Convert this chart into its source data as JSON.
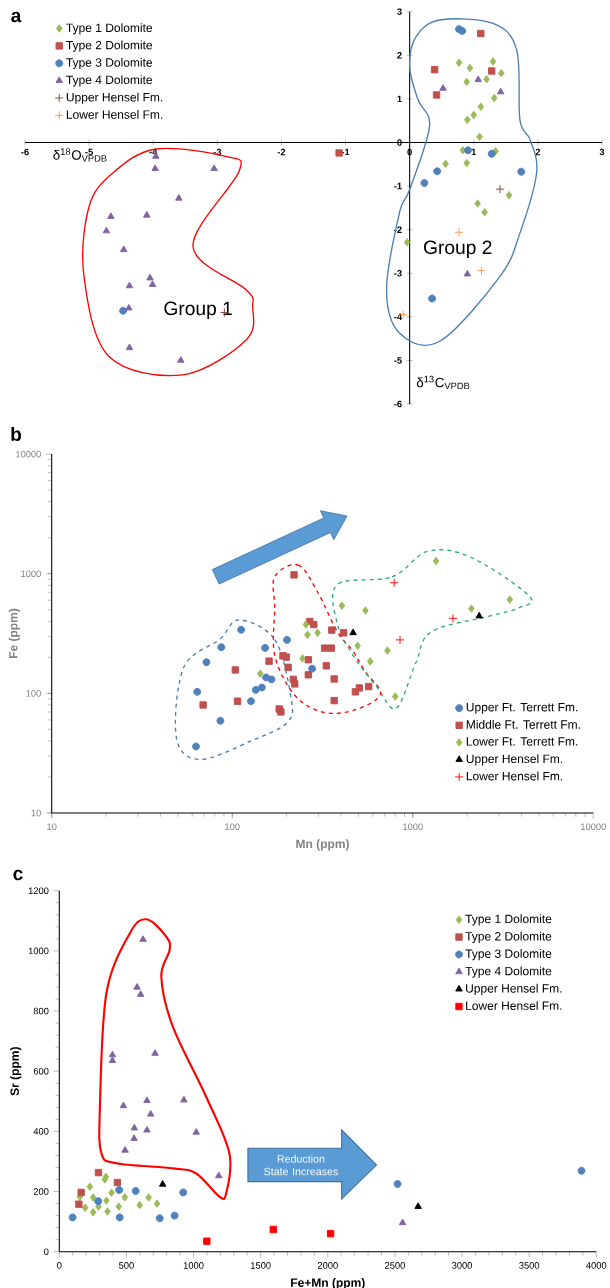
{
  "chart_data": [
    {
      "type": "scatter",
      "title": "a",
      "xlabel": "δ$^{18}$O$_{VPDB}$",
      "ylabel": "δ$^{13}$C$_{VPDB}$",
      "xlim": [
        -6,
        3
      ],
      "ylim": [
        -6,
        3
      ],
      "xticks": [
        -6,
        -5,
        -4,
        -3,
        -2,
        -1,
        0,
        1,
        2,
        3
      ],
      "yticks": [
        -6,
        -5,
        -4,
        -3,
        -2,
        -1,
        0,
        1,
        2,
        3
      ],
      "legend": "top left",
      "annotations": [
        "Group 1",
        "Group 2"
      ],
      "series": [
        {
          "name": "Type 1 Dolomite",
          "color": "#9bbb59",
          "marker": "diamond",
          "x": [
            0.77,
            0.94,
            1.3,
            1.43,
            0.89,
            1.2,
            1.32,
            1.11,
            1.0,
            0.9,
            1.09,
            0.83,
            1.34,
            0.56,
            0.89,
            1.55,
            1.06,
            1.17,
            -0.04
          ],
          "values": [
            1.83,
            1.71,
            1.86,
            1.59,
            1.39,
            1.45,
            1.02,
            0.82,
            0.63,
            0.52,
            0.13,
            -0.18,
            -0.2,
            -0.49,
            -0.47,
            -1.21,
            -1.4,
            -1.6,
            -2.29
          ]
        },
        {
          "name": "Type 2 Dolomite",
          "color": "#c0504d",
          "marker": "square",
          "x": [
            1.11,
            0.39,
            1.28,
            0.42,
            -1.1
          ],
          "values": [
            2.5,
            1.67,
            1.64,
            1.09,
            -0.24
          ]
        },
        {
          "name": "Type 3 Dolomite",
          "color": "#4f81bd",
          "marker": "circle",
          "x": [
            0.77,
            0.82,
            0.91,
            1.28,
            0.43,
            1.74,
            0.23,
            0.35,
            -4.47
          ],
          "values": [
            2.6,
            2.56,
            -0.18,
            -0.26,
            -0.66,
            -0.67,
            -0.93,
            -3.58,
            -3.86
          ]
        },
        {
          "name": "Type 4 Dolomite",
          "color": "#8064a2",
          "marker": "triangle",
          "x": [
            0.52,
            1.07,
            1.42,
            0.9,
            -3.96,
            -3.97,
            -3.05,
            -3.6,
            -4.66,
            -4.1,
            -4.73,
            -4.46,
            -4.37,
            -4.05,
            -4.01,
            -4.38,
            -4.37,
            -3.57
          ],
          "values": [
            1.24,
            1.44,
            1.16,
            -3.02,
            -0.32,
            -0.6,
            -0.6,
            -1.28,
            -1.7,
            -1.67,
            -2.03,
            -2.46,
            -3.29,
            -3.11,
            -3.26,
            -3.8,
            -4.71,
            -5.0
          ]
        },
        {
          "name": "Upper Hensel Fm.",
          "color": "#7f3f3f",
          "marker": "cross",
          "x": [
            -2.89,
            1.41
          ],
          "values": [
            -3.9,
            -1.07
          ]
        },
        {
          "name": "Lower Hensel Fm.",
          "color": "#f79646",
          "marker": "cross",
          "x": [
            0.77,
            1.12,
            -0.1
          ],
          "values": [
            -2.06,
            -2.94,
            -3.95
          ]
        }
      ]
    },
    {
      "type": "scatter",
      "title": "b",
      "xlabel": "Mn (ppm)",
      "ylabel": "Fe (ppm)",
      "log": "xy",
      "xlim": [
        10,
        10000
      ],
      "ylim": [
        10,
        10000
      ],
      "xticks": [
        10,
        100,
        1000,
        10000
      ],
      "yticks": [
        10,
        100,
        1000,
        10000
      ],
      "legend": "bottom right",
      "series": [
        {
          "name": "Upper Ft. Terrett Fm.",
          "color": "#4f81bd",
          "marker": "circle",
          "x": [
            112,
            87,
            72,
            64,
            86,
            63,
            127,
            135,
            146,
            154,
            165,
            152,
            201,
            277
          ],
          "values": [
            340,
            243,
            182,
            103,
            59,
            36,
            86,
            107,
            112,
            136,
            131,
            240,
            280,
            161
          ]
        },
        {
          "name": "Middle Ft. Terrett Fm.",
          "color": "#c0504d",
          "marker": "square",
          "x": [
            220,
            69,
            104,
            107,
            160,
            191,
            199,
            204,
            182,
            186,
            218,
            222,
            269,
            283,
            264,
            264,
            325,
            354,
            332,
            367,
            367,
            356,
            414,
            481,
            506,
            570
          ],
          "values": [
            979,
            80,
            157,
            86,
            186,
            206,
            201,
            165,
            74,
            70,
            131,
            120,
            399,
            376,
            191,
            143,
            239,
            239,
            170,
            132,
            87,
            338,
            321,
            103,
            111,
            114
          ]
        },
        {
          "name": "Lower Ft. Terrett Fm.",
          "color": "#9bbb59",
          "marker": "diamond",
          "x": [
            143,
            245,
            256,
            261,
            297,
            405,
            547,
            495,
            581,
            724,
            800,
            1346,
            2113,
            3449
          ],
          "values": [
            146,
            196,
            376,
            309,
            321,
            540,
            493,
            250,
            185,
            228,
            94,
            1277,
            511,
            608
          ]
        },
        {
          "name": "Upper Hensel Fm.",
          "color": "#000000",
          "marker": "triangle",
          "x": [
            467,
            2333
          ],
          "values": [
            321,
            443
          ]
        },
        {
          "name": "Lower Hensel Fm.",
          "color": "#ff0000",
          "marker": "cross",
          "x": [
            789,
            850,
            1671
          ],
          "values": [
            841,
            280,
            424
          ]
        }
      ]
    },
    {
      "type": "scatter",
      "title": "c",
      "xlabel": "Fe+Mn (ppm)",
      "ylabel": "Sr (ppm)",
      "xlim": [
        0,
        4000
      ],
      "ylim": [
        0,
        1200
      ],
      "xticks": [
        0,
        500,
        1000,
        1500,
        2000,
        2500,
        3000,
        3500,
        4000
      ],
      "yticks": [
        0,
        200,
        400,
        600,
        800,
        1000,
        1200
      ],
      "legend": "top right",
      "annotations": [
        "Reduction State Increases"
      ],
      "series": [
        {
          "name": "Type 1 Dolomite",
          "color": "#9bbb59",
          "marker": "diamond",
          "x": [
            228,
            347,
            339,
            193,
            252,
            252,
            351,
            359,
            389,
            443,
            488,
            599,
            666,
            728,
            292,
            153
          ],
          "values": [
            216,
            249,
            240,
            146,
            180,
            131,
            170,
            134,
            196,
            150,
            181,
            155,
            180,
            160,
            150,
            183
          ]
        },
        {
          "name": "Type 2 Dolomite",
          "color": "#c0504d",
          "marker": "square",
          "x": [
            292,
            163,
            146,
            433
          ],
          "values": [
            263,
            197,
            158,
            230
          ]
        },
        {
          "name": "Type 3 Dolomite",
          "color": "#4f81bd",
          "marker": "circle",
          "x": [
            99,
            290,
            446,
            450,
            569,
            748,
            859,
            923,
            2520,
            3890
          ],
          "values": [
            114,
            168,
            205,
            114,
            202,
            111,
            120,
            197,
            225,
            269
          ]
        },
        {
          "name": "Type 4 Dolomite",
          "color": "#8064a2",
          "marker": "triangle",
          "x": [
            624,
            579,
            606,
            396,
            396,
            713,
            478,
            653,
            928,
            681,
            559,
            653,
            557,
            490,
            1020,
            1188,
            2557
          ],
          "values": [
            1038,
            879,
            855,
            654,
            635,
            659,
            485,
            502,
            504,
            457,
            411,
            404,
            376,
            337,
            397,
            252,
            96
          ]
        },
        {
          "name": "Upper Hensel Fm.",
          "color": "#000000",
          "marker": "triangle",
          "x": [
            770,
            2673
          ],
          "values": [
            224,
            150
          ]
        },
        {
          "name": "Lower Hensel Fm.",
          "color": "#ff0000",
          "marker": "square",
          "x": [
            1099,
            1594,
            2021
          ],
          "values": [
            35,
            74,
            60
          ]
        }
      ]
    }
  ]
}
